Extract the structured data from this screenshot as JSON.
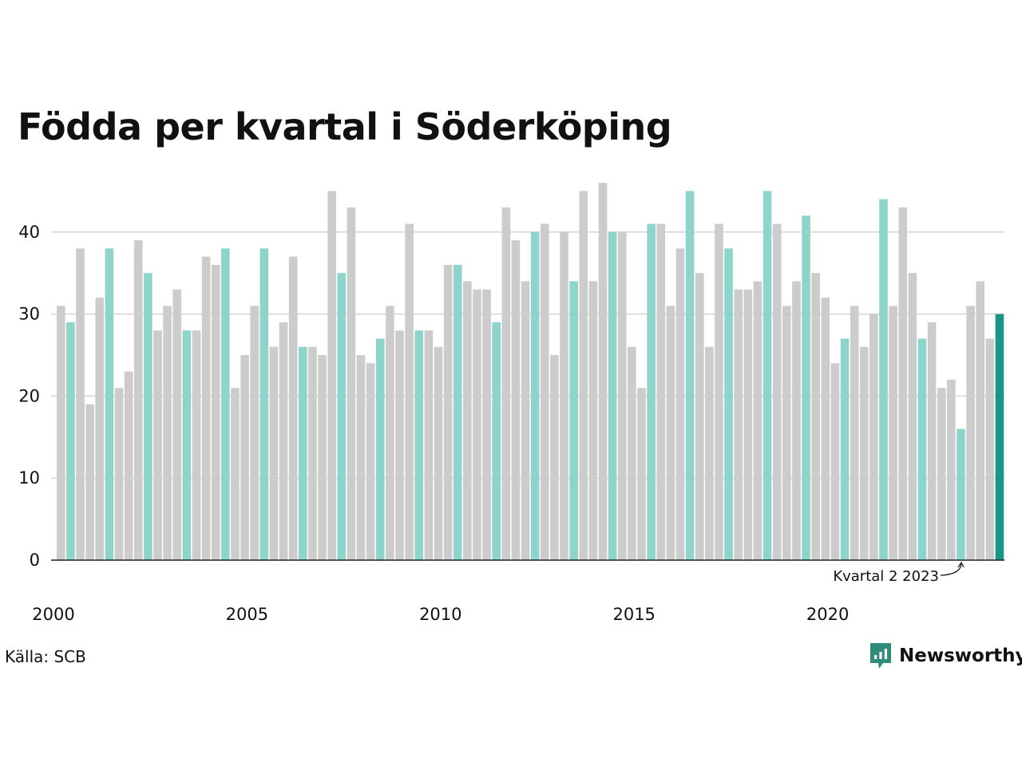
{
  "title": "Födda per kvartal i Söderköping",
  "source": "Källa: SCB",
  "brand": {
    "name": "Newsworthy",
    "icon": "newsworthy-logo-icon"
  },
  "colors": {
    "default": "#cccccc",
    "highlight": "#8dd5cb",
    "latest": "#1a9686",
    "brand": "#2e8c78",
    "grid": "#dddddd",
    "axis": "#222222"
  },
  "chart_data": {
    "type": "bar",
    "title": "Födda per kvartal i Söderköping",
    "xlabel": "",
    "ylabel": "",
    "start": {
      "year": 2000,
      "quarter": 1
    },
    "values": [
      31,
      29,
      38,
      19,
      32,
      38,
      21,
      23,
      39,
      35,
      28,
      31,
      33,
      28,
      28,
      37,
      36,
      38,
      21,
      25,
      31,
      38,
      26,
      29,
      37,
      26,
      26,
      25,
      45,
      35,
      43,
      25,
      24,
      27,
      31,
      28,
      41,
      28,
      28,
      26,
      36,
      36,
      34,
      33,
      33,
      29,
      43,
      39,
      34,
      40,
      41,
      25,
      40,
      34,
      45,
      34,
      46,
      40,
      40,
      26,
      21,
      41,
      41,
      31,
      38,
      45,
      35,
      26,
      41,
      38,
      33,
      33,
      34,
      45,
      41,
      31,
      34,
      42,
      35,
      32,
      24,
      27,
      31,
      26,
      30,
      44,
      31,
      43,
      35,
      27,
      29,
      21,
      22,
      16,
      31,
      34,
      27,
      30
    ],
    "highlight_quarter": 2,
    "ylim": [
      0,
      46
    ],
    "y_ticks": [
      0,
      10,
      20,
      30,
      40
    ],
    "x_ticks": [
      "2000",
      "2005",
      "2010",
      "2015",
      "2020"
    ],
    "grid": true,
    "annotation": {
      "text": "Kvartal 2 2023",
      "target_index": 93
    }
  }
}
